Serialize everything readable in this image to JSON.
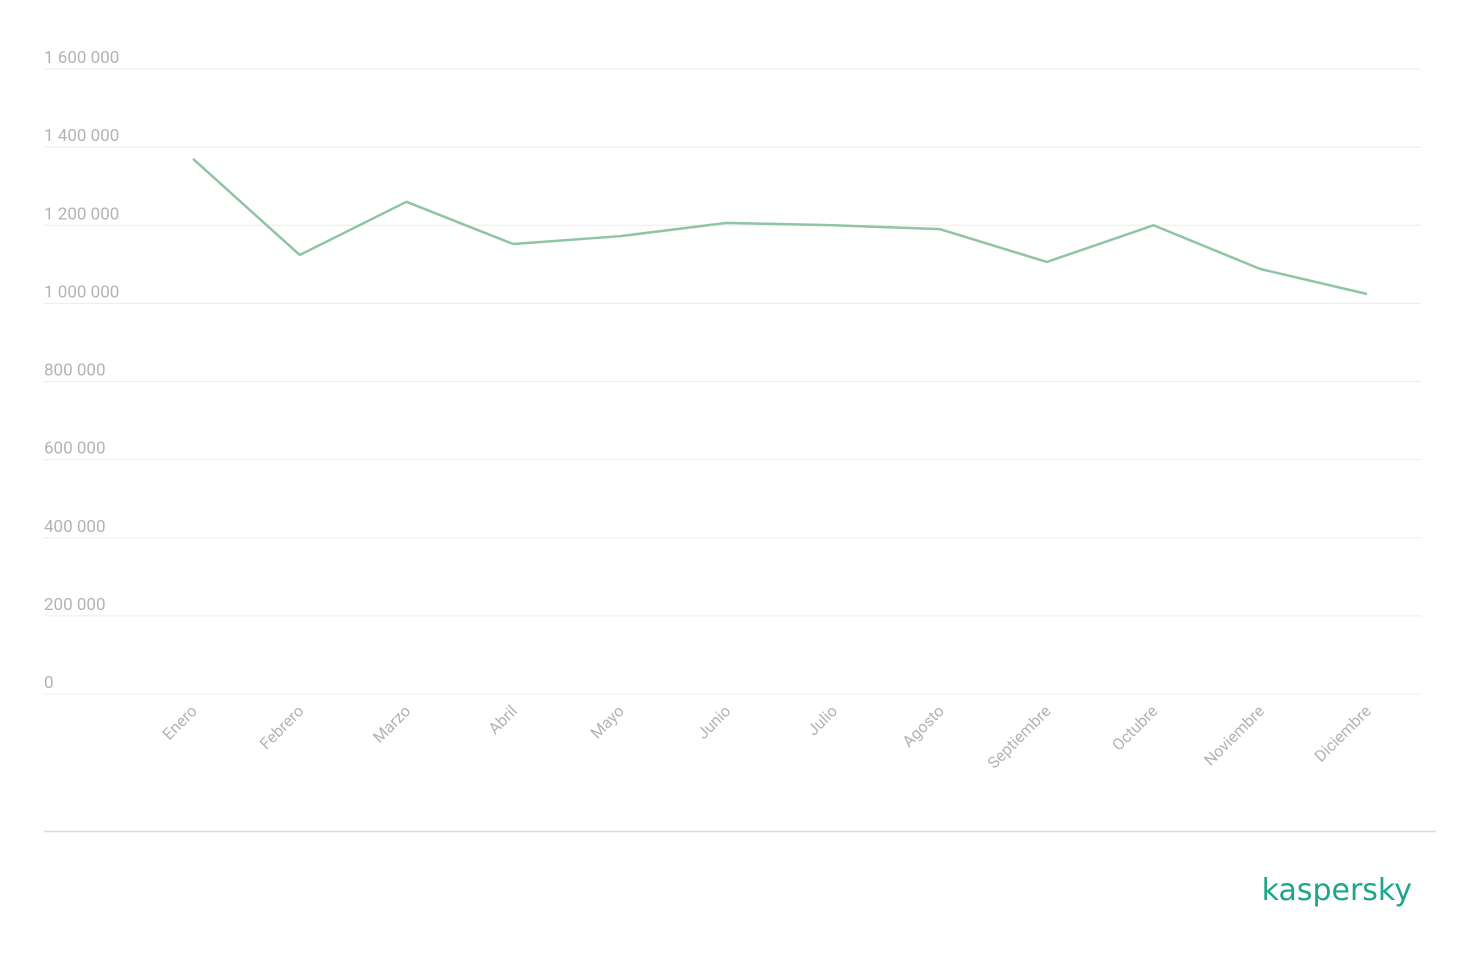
{
  "chart_data": {
    "type": "line",
    "categories": [
      "Enero",
      "Febrero",
      "Marzo",
      "Abril",
      "Mayo",
      "Junio",
      "Julio",
      "Agosto",
      "Septiembre",
      "Octubre",
      "Noviembre",
      "Diciembre"
    ],
    "series": [
      {
        "color": "#8fc4a4",
        "values": [
          1370000,
          1124000,
          1260000,
          1152000,
          1172000,
          1206000,
          1200000,
          1190000,
          1106000,
          1200000,
          1088000,
          1024000
        ]
      }
    ],
    "ylim": [
      0,
      1600000
    ],
    "yticks": [
      0,
      {
        "value": 200000,
        "label": "200 000"
      },
      {
        "value": 400000,
        "label": "400 000"
      },
      {
        "value": 600000,
        "label": "600 000"
      },
      {
        "value": 800000,
        "label": "800 000"
      },
      {
        "value": 1000000,
        "label": "1 000 000"
      },
      {
        "value": 1200000,
        "label": "1 200 000"
      },
      {
        "value": 1400000,
        "label": "1 400 000"
      },
      {
        "value": 1600000,
        "label": "1 600 000"
      }
    ],
    "grid": true
  },
  "logo": "kaspersky"
}
